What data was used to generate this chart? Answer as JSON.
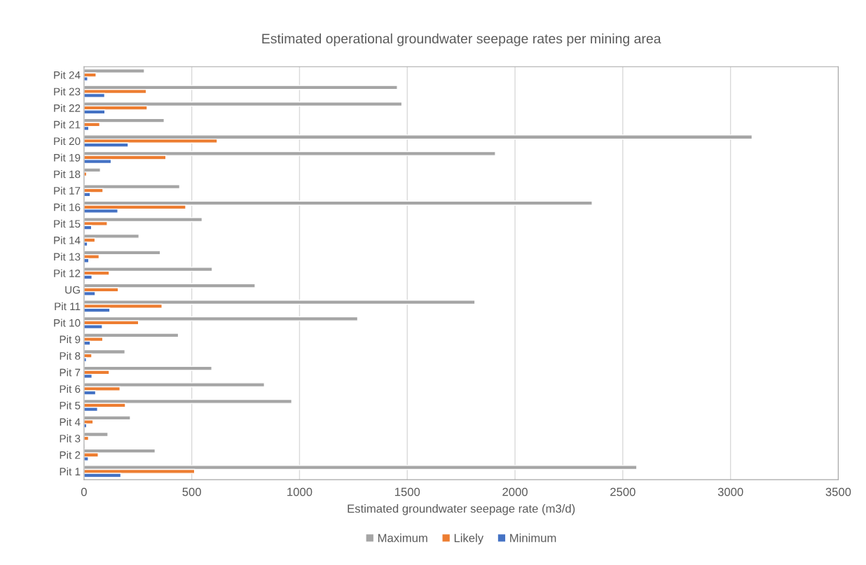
{
  "chart_data": {
    "type": "bar",
    "orientation": "horizontal",
    "title": "Estimated operational groundwater seepage rates per mining area",
    "xlabel": "Estimated groundwater seepage rate (m3/d)",
    "categories": [
      "Pit 24",
      "Pit 23",
      "Pit 22",
      "Pit 21",
      "Pit 20",
      "Pit 19",
      "Pit 18",
      "Pit 17",
      "Pit 16",
      "Pit 15",
      "Pit 14",
      "Pit 13",
      "Pit 12",
      "UG",
      "Pit 11",
      "Pit 10",
      "Pit 9",
      "Pit 8",
      "Pit 7",
      "Pit 6",
      "Pit 5",
      "Pit 4",
      "Pit 3",
      "Pit 2",
      "Pit 1"
    ],
    "series": [
      {
        "name": "Maximum",
        "color": "#a5a5a5",
        "values": [
          280,
          1454,
          1475,
          372,
          3100,
          1909,
          76,
          444,
          2358,
          548,
          255,
          354,
          595,
          794,
          1814,
          1270,
          438,
          190,
          593,
          837,
          964,
          215,
          111,
          330,
          2565
        ]
      },
      {
        "name": "Likely",
        "color": "#ed7d31",
        "values": [
          56,
          289,
          293,
          73,
          618,
          380,
          12,
          88,
          472,
          108,
          51,
          70,
          117,
          159,
          362,
          253,
          87,
          36,
          117,
          167,
          192,
          42,
          21,
          66,
          513
        ]
      },
      {
        "name": "Minimum",
        "color": "#4472c4",
        "values": [
          17,
          96,
          97,
          22,
          205,
          126,
          null,
          29,
          157,
          35,
          16,
          22,
          37,
          52,
          120,
          85,
          29,
          11,
          37,
          54,
          63,
          12,
          null,
          20,
          171
        ]
      }
    ],
    "xlim": [
      0,
      3500
    ],
    "xticks": [
      0,
      500,
      1000,
      1500,
      2000,
      2500,
      3000,
      3500
    ],
    "grid": "x",
    "legend": "bottom"
  }
}
